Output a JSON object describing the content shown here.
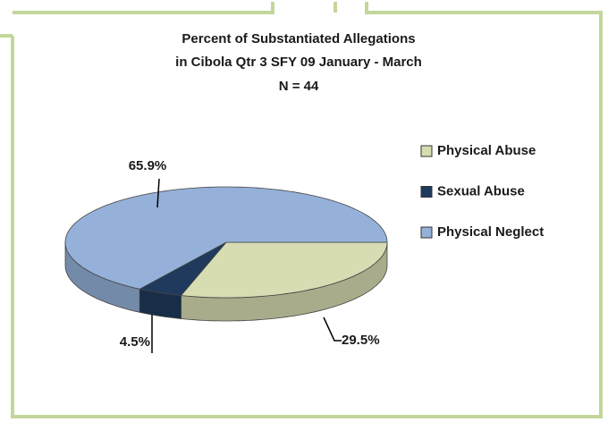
{
  "chart_data": {
    "type": "pie3d",
    "title": [
      "Percent of Substantiated Allegations",
      "in Cibola Qtr 3 SFY 09 January - March",
      "N = 44"
    ],
    "categories": [
      "Physical Abuse",
      "Sexual Abuse",
      "Physical Neglect"
    ],
    "values": [
      29.5,
      4.5,
      65.9
    ],
    "value_labels": [
      "29.5%",
      "4.5%",
      "65.9%"
    ],
    "colors": [
      "#d7dcb2",
      "#1f3a5c",
      "#95b1d9"
    ],
    "legend": "right"
  }
}
